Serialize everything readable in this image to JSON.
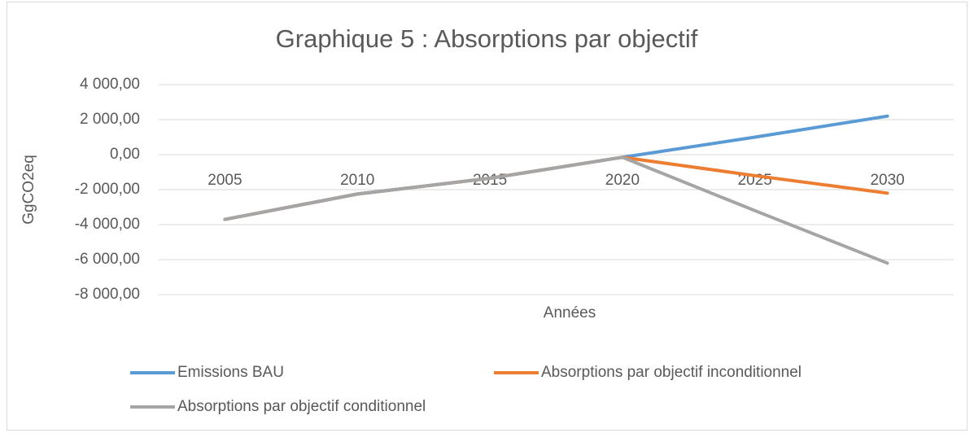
{
  "chart_data": {
    "type": "line",
    "title": "Graphique 5 : Absorptions  par objectif",
    "x_label": "Années",
    "y_label": "GgCO2eq",
    "categories": [
      "2005",
      "2010",
      "2015",
      "2020",
      "2025",
      "2030"
    ],
    "series": [
      {
        "name": "Emissions BAU",
        "color": "#5b9bd5",
        "values": [
          -3700,
          -2250,
          -1350,
          -150,
          1000,
          2200
        ]
      },
      {
        "name": "Absorptions par objectif inconditionnel",
        "color": "#ed7d31",
        "values": [
          -3700,
          -2250,
          -1350,
          -150,
          -1200,
          -2200
        ]
      },
      {
        "name": "Absorptions par objectif conditionnel",
        "color": "#a5a5a5",
        "values": [
          -3700,
          -2250,
          -1350,
          -150,
          -3200,
          -6200
        ]
      }
    ],
    "ylim": [
      -8000,
      4000
    ],
    "yticks": [
      {
        "value": -8000,
        "label": "-8 000,00"
      },
      {
        "value": -6000,
        "label": "-6 000,00"
      },
      {
        "value": -4000,
        "label": "-4 000,00"
      },
      {
        "value": -2000,
        "label": "-2 000,00"
      },
      {
        "value": 0,
        "label": "0,00"
      },
      {
        "value": 2000,
        "label": "2 000,00"
      },
      {
        "value": 4000,
        "label": "4 000,00"
      }
    ],
    "grid": true
  }
}
